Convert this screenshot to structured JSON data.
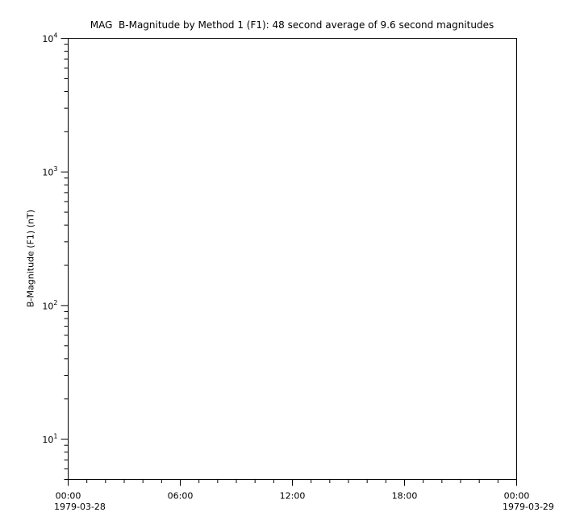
{
  "figure": {
    "background_color": "#ffffff",
    "axis_color": "#000000",
    "text_color": "#000000"
  },
  "chart_data": {
    "type": "line",
    "title": "MAG  B-Magnitude by Method 1 (F1): 48 second average of 9.6 second magnitudes",
    "xlabel": "",
    "ylabel": "B-Magnitude (F1) (nT)",
    "legend": "none",
    "grid": "off",
    "series": [],
    "x_axis": {
      "scale": "time",
      "start_date": "1979-03-28",
      "end_date": "1979-03-29",
      "duration_hours": 24,
      "minor_tick_interval_hours": 1,
      "major_ticks": [
        {
          "hour": 0,
          "label": "00:00",
          "date_label": "1979-03-28"
        },
        {
          "hour": 6,
          "label": "06:00"
        },
        {
          "hour": 12,
          "label": "12:00"
        },
        {
          "hour": 18,
          "label": "18:00"
        },
        {
          "hour": 24,
          "label": "00:00",
          "date_label": "1979-03-29"
        }
      ]
    },
    "y_axis": {
      "scale": "log",
      "min": 5,
      "max": 10000,
      "minor_ticks": "mantissas 2-9 of each decade",
      "major_ticks": [
        {
          "value": 10000,
          "base": "10",
          "exponent": "4"
        },
        {
          "value": 1000,
          "base": "10",
          "exponent": "3"
        },
        {
          "value": 100,
          "base": "10",
          "exponent": "2"
        },
        {
          "value": 10,
          "base": "10",
          "exponent": "1"
        }
      ]
    }
  }
}
